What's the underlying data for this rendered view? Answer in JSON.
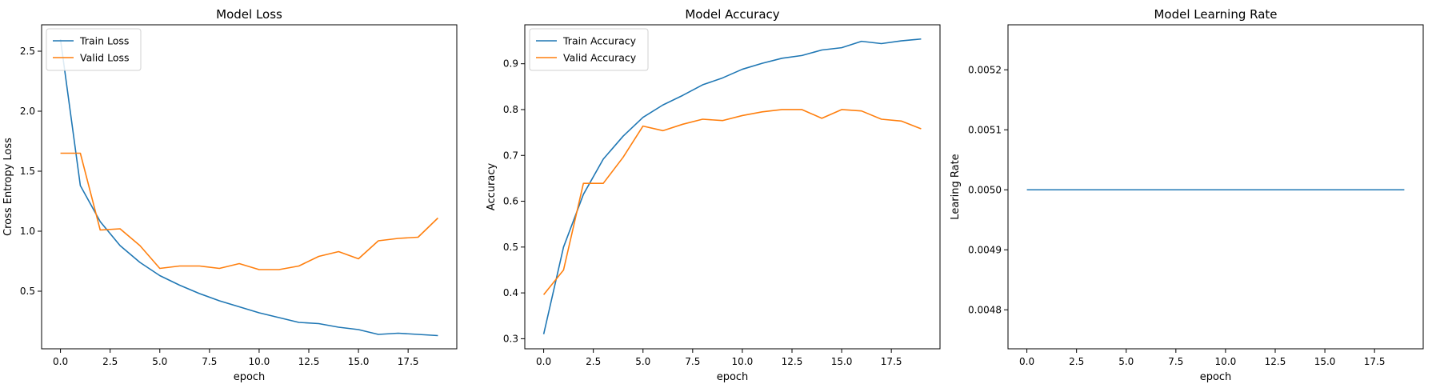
{
  "chart_data": [
    {
      "type": "line",
      "title": "Model Loss",
      "xlabel": "epoch",
      "ylabel": "Cross Entropy Loss",
      "xlim": [
        -0.95,
        19.95
      ],
      "ylim": [
        0.02,
        2.72
      ],
      "xticks": [
        0,
        2.5,
        5,
        7.5,
        10,
        12.5,
        15,
        17.5
      ],
      "xtick_labels": [
        "0.0",
        "2.5",
        "5.0",
        "7.5",
        "10.0",
        "12.5",
        "15.0",
        "17.5"
      ],
      "yticks": [
        0.5,
        1.0,
        1.5,
        2.0,
        2.5
      ],
      "ytick_labels": [
        "0.5",
        "1.0",
        "1.5",
        "2.0",
        "2.5"
      ],
      "legend": "top-left",
      "grid": false,
      "x": [
        0,
        1,
        2,
        3,
        4,
        5,
        6,
        7,
        8,
        9,
        10,
        11,
        12,
        13,
        14,
        15,
        16,
        17,
        18,
        19
      ],
      "series": [
        {
          "name": "Train Loss",
          "color": "#1f77b4",
          "values": [
            2.6,
            1.38,
            1.08,
            0.88,
            0.74,
            0.63,
            0.55,
            0.48,
            0.42,
            0.37,
            0.32,
            0.28,
            0.24,
            0.23,
            0.2,
            0.18,
            0.14,
            0.15,
            0.14,
            0.13
          ]
        },
        {
          "name": "Valid Loss",
          "color": "#ff7f0e",
          "values": [
            1.65,
            1.65,
            1.01,
            1.02,
            0.88,
            0.69,
            0.71,
            0.71,
            0.69,
            0.73,
            0.68,
            0.68,
            0.71,
            0.79,
            0.83,
            0.77,
            0.92,
            0.94,
            0.95,
            1.11
          ]
        }
      ]
    },
    {
      "type": "line",
      "title": "Model Accuracy",
      "xlabel": "epoch",
      "ylabel": "Accuracy",
      "xlim": [
        -0.95,
        19.95
      ],
      "ylim": [
        0.278,
        0.985
      ],
      "xticks": [
        0,
        2.5,
        5,
        7.5,
        10,
        12.5,
        15,
        17.5
      ],
      "xtick_labels": [
        "0.0",
        "2.5",
        "5.0",
        "7.5",
        "10.0",
        "12.5",
        "15.0",
        "17.5"
      ],
      "yticks": [
        0.3,
        0.4,
        0.5,
        0.6,
        0.7,
        0.8,
        0.9
      ],
      "ytick_labels": [
        "0.3",
        "0.4",
        "0.5",
        "0.6",
        "0.7",
        "0.8",
        "0.9"
      ],
      "legend": "top-left",
      "grid": false,
      "x": [
        0,
        1,
        2,
        3,
        4,
        5,
        6,
        7,
        8,
        9,
        10,
        11,
        12,
        13,
        14,
        15,
        16,
        17,
        18,
        19
      ],
      "series": [
        {
          "name": "Train Accuracy",
          "color": "#1f77b4",
          "values": [
            0.31,
            0.5,
            0.615,
            0.692,
            0.742,
            0.783,
            0.81,
            0.831,
            0.854,
            0.869,
            0.888,
            0.901,
            0.912,
            0.918,
            0.93,
            0.935,
            0.949,
            0.944,
            0.95,
            0.954
          ]
        },
        {
          "name": "Valid Accuracy",
          "color": "#ff7f0e",
          "values": [
            0.396,
            0.45,
            0.639,
            0.639,
            0.696,
            0.764,
            0.754,
            0.768,
            0.779,
            0.776,
            0.787,
            0.795,
            0.8,
            0.8,
            0.781,
            0.8,
            0.797,
            0.779,
            0.775,
            0.758
          ]
        }
      ]
    },
    {
      "type": "line",
      "title": "Model Learning Rate",
      "xlabel": "epoch",
      "ylabel": "Learing Rate",
      "xlim": [
        -0.95,
        19.95
      ],
      "ylim": [
        0.004735,
        0.005275
      ],
      "xticks": [
        0,
        2.5,
        5,
        7.5,
        10,
        12.5,
        15,
        17.5
      ],
      "xtick_labels": [
        "0.0",
        "2.5",
        "5.0",
        "7.5",
        "10.0",
        "12.5",
        "15.0",
        "17.5"
      ],
      "yticks": [
        0.0048,
        0.0049,
        0.005,
        0.0051,
        0.0052
      ],
      "ytick_labels": [
        "0.0048",
        "0.0049",
        "0.0050",
        "0.0051",
        "0.0052"
      ],
      "grid": false,
      "x": [
        0,
        1,
        2,
        3,
        4,
        5,
        6,
        7,
        8,
        9,
        10,
        11,
        12,
        13,
        14,
        15,
        16,
        17,
        18,
        19
      ],
      "series": [
        {
          "color": "#1f77b4",
          "values": [
            0.005,
            0.005,
            0.005,
            0.005,
            0.005,
            0.005,
            0.005,
            0.005,
            0.005,
            0.005,
            0.005,
            0.005,
            0.005,
            0.005,
            0.005,
            0.005,
            0.005,
            0.005,
            0.005,
            0.005
          ]
        }
      ]
    }
  ]
}
